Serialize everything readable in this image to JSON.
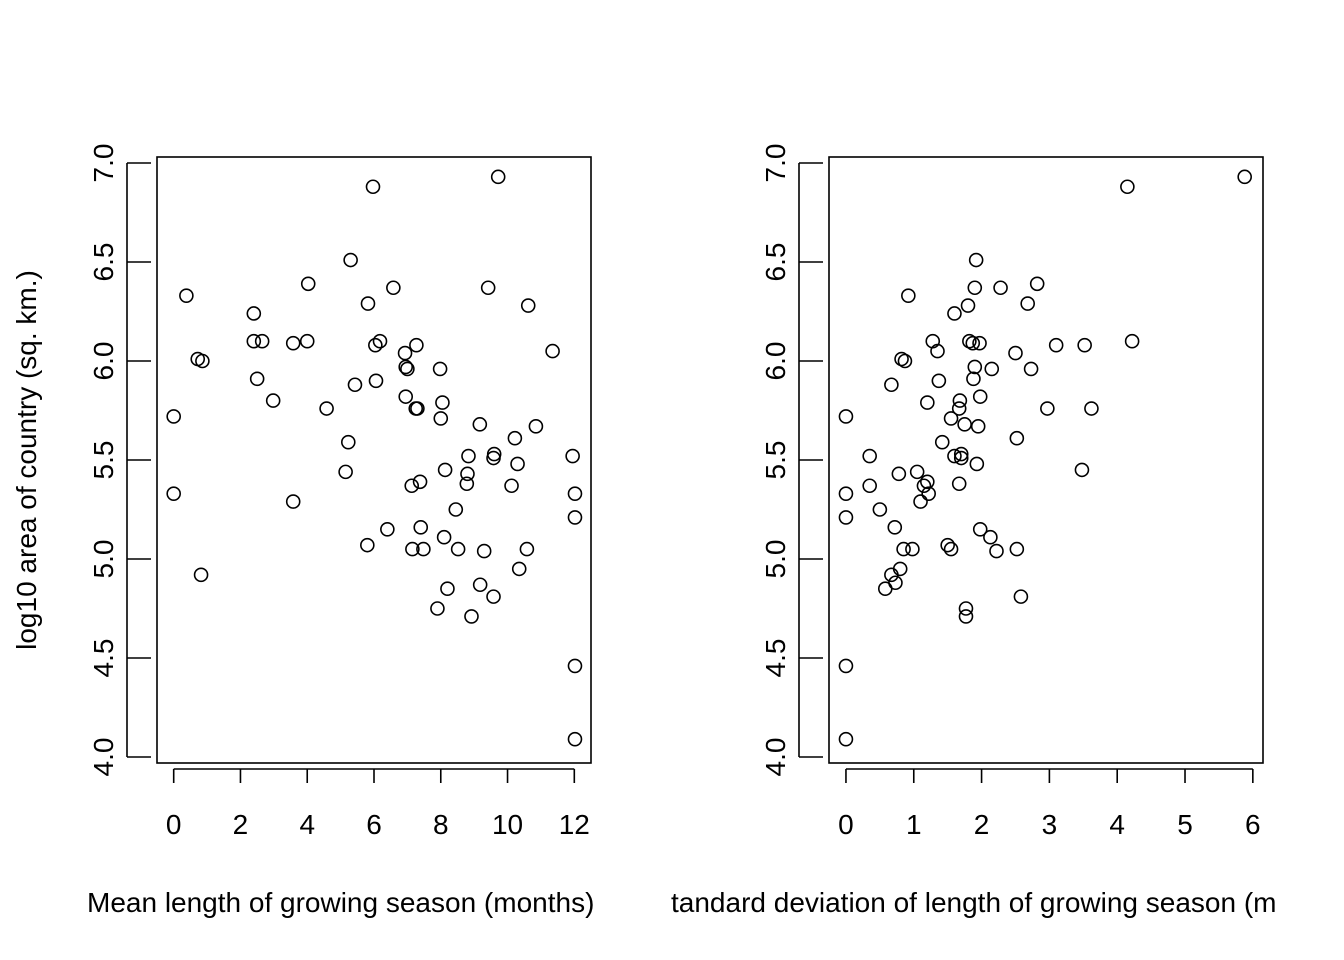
{
  "chart_data": [
    {
      "type": "scatter",
      "title": "",
      "xlabel": "Mean length of growing season (months)",
      "ylabel": "log10 area of country (sq. km.)",
      "xlim": [
        -0.5,
        12.5
      ],
      "ylim": [
        4.0,
        7.0
      ],
      "xticks": [
        "0",
        "2",
        "4",
        "6",
        "8",
        "10",
        "12"
      ],
      "yticks": [
        "4.0",
        "4.5",
        "5.0",
        "5.5",
        "6.0",
        "6.5",
        "7.0"
      ],
      "xtick_values": [
        0,
        2,
        4,
        6,
        8,
        10,
        12
      ],
      "ytick_values": [
        4.0,
        4.5,
        5.0,
        5.5,
        6.0,
        6.5,
        7.0
      ],
      "grid": false,
      "points": [
        [
          0.0,
          5.72
        ],
        [
          0.0,
          5.33
        ],
        [
          0.38,
          6.33
        ],
        [
          0.72,
          6.01
        ],
        [
          0.86,
          6.0
        ],
        [
          0.82,
          4.92
        ],
        [
          2.4,
          6.24
        ],
        [
          2.4,
          6.1
        ],
        [
          2.65,
          6.1
        ],
        [
          2.5,
          5.91
        ],
        [
          2.98,
          5.8
        ],
        [
          3.58,
          6.09
        ],
        [
          3.58,
          5.29
        ],
        [
          4.0,
          6.1
        ],
        [
          4.03,
          6.39
        ],
        [
          4.58,
          5.76
        ],
        [
          5.15,
          5.44
        ],
        [
          5.23,
          5.59
        ],
        [
          5.3,
          6.51
        ],
        [
          5.43,
          5.88
        ],
        [
          5.82,
          6.29
        ],
        [
          5.97,
          6.88
        ],
        [
          5.8,
          5.07
        ],
        [
          6.06,
          5.9
        ],
        [
          6.04,
          6.08
        ],
        [
          6.18,
          6.1
        ],
        [
          6.4,
          5.15
        ],
        [
          6.58,
          6.37
        ],
        [
          6.93,
          6.04
        ],
        [
          6.95,
          5.97
        ],
        [
          6.95,
          5.82
        ],
        [
          7.0,
          5.96
        ],
        [
          7.13,
          5.37
        ],
        [
          7.15,
          5.05
        ],
        [
          7.25,
          5.76
        ],
        [
          7.27,
          6.08
        ],
        [
          7.3,
          5.76
        ],
        [
          7.38,
          5.39
        ],
        [
          7.4,
          5.16
        ],
        [
          7.48,
          5.05
        ],
        [
          7.9,
          4.75
        ],
        [
          7.98,
          5.96
        ],
        [
          8.0,
          5.71
        ],
        [
          8.05,
          5.79
        ],
        [
          8.1,
          5.11
        ],
        [
          8.13,
          5.45
        ],
        [
          8.2,
          4.85
        ],
        [
          8.45,
          5.25
        ],
        [
          8.52,
          5.05
        ],
        [
          8.78,
          5.38
        ],
        [
          8.8,
          5.43
        ],
        [
          8.83,
          5.52
        ],
        [
          8.92,
          4.71
        ],
        [
          9.18,
          4.87
        ],
        [
          9.17,
          5.68
        ],
        [
          9.3,
          5.04
        ],
        [
          9.42,
          6.37
        ],
        [
          9.58,
          5.51
        ],
        [
          9.6,
          5.53
        ],
        [
          9.58,
          4.81
        ],
        [
          9.72,
          6.93
        ],
        [
          10.12,
          5.37
        ],
        [
          10.22,
          5.61
        ],
        [
          10.3,
          5.48
        ],
        [
          10.35,
          4.95
        ],
        [
          10.58,
          5.05
        ],
        [
          10.62,
          6.28
        ],
        [
          10.85,
          5.67
        ],
        [
          11.35,
          6.05
        ],
        [
          11.95,
          5.52
        ],
        [
          12.02,
          5.33
        ],
        [
          12.02,
          5.21
        ],
        [
          12.02,
          4.46
        ],
        [
          12.02,
          4.09
        ]
      ]
    },
    {
      "type": "scatter",
      "title": "",
      "xlabel": "Standard deviation of length of growing season (months)",
      "xlabel_visible": "tandard deviation of length of growing season (m",
      "ylabel": "",
      "xlim": [
        -0.25,
        6.15
      ],
      "ylim": [
        4.0,
        7.0
      ],
      "xticks": [
        "0",
        "1",
        "2",
        "3",
        "4",
        "5",
        "6"
      ],
      "yticks": [
        "4.0",
        "4.5",
        "5.0",
        "5.5",
        "6.0",
        "6.5",
        "7.0"
      ],
      "xtick_values": [
        0,
        1,
        2,
        3,
        4,
        5,
        6
      ],
      "ytick_values": [
        4.0,
        4.5,
        5.0,
        5.5,
        6.0,
        6.5,
        7.0
      ],
      "grid": false,
      "points": [
        [
          0.0,
          5.72
        ],
        [
          0.0,
          5.33
        ],
        [
          0.0,
          5.21
        ],
        [
          0.0,
          4.46
        ],
        [
          0.0,
          4.09
        ],
        [
          0.35,
          5.52
        ],
        [
          0.35,
          5.37
        ],
        [
          0.5,
          5.25
        ],
        [
          0.58,
          4.85
        ],
        [
          0.67,
          5.88
        ],
        [
          0.67,
          4.92
        ],
        [
          0.73,
          4.88
        ],
        [
          0.72,
          5.16
        ],
        [
          0.78,
          5.43
        ],
        [
          0.8,
          4.95
        ],
        [
          0.82,
          6.01
        ],
        [
          0.87,
          6.0
        ],
        [
          0.85,
          5.05
        ],
        [
          0.92,
          6.33
        ],
        [
          0.98,
          5.05
        ],
        [
          1.05,
          5.44
        ],
        [
          1.1,
          5.29
        ],
        [
          1.15,
          5.37
        ],
        [
          1.2,
          5.39
        ],
        [
          1.2,
          5.79
        ],
        [
          1.22,
          5.33
        ],
        [
          1.28,
          6.1
        ],
        [
          1.35,
          6.05
        ],
        [
          1.37,
          5.9
        ],
        [
          1.42,
          5.59
        ],
        [
          1.5,
          5.07
        ],
        [
          1.55,
          5.71
        ],
        [
          1.55,
          5.05
        ],
        [
          1.6,
          5.52
        ],
        [
          1.6,
          6.24
        ],
        [
          1.67,
          5.76
        ],
        [
          1.68,
          5.8
        ],
        [
          1.67,
          5.38
        ],
        [
          1.7,
          5.51
        ],
        [
          1.7,
          5.53
        ],
        [
          1.75,
          5.68
        ],
        [
          1.77,
          4.75
        ],
        [
          1.77,
          4.71
        ],
        [
          1.8,
          6.28
        ],
        [
          1.82,
          6.1
        ],
        [
          1.87,
          6.09
        ],
        [
          1.88,
          5.91
        ],
        [
          1.9,
          5.97
        ],
        [
          1.9,
          6.37
        ],
        [
          1.92,
          6.51
        ],
        [
          1.93,
          5.48
        ],
        [
          1.95,
          5.67
        ],
        [
          1.97,
          6.09
        ],
        [
          1.98,
          5.82
        ],
        [
          1.98,
          5.15
        ],
        [
          2.13,
          5.11
        ],
        [
          2.15,
          5.96
        ],
        [
          2.22,
          5.04
        ],
        [
          2.28,
          6.37
        ],
        [
          2.5,
          6.04
        ],
        [
          2.52,
          5.61
        ],
        [
          2.52,
          5.05
        ],
        [
          2.58,
          4.81
        ],
        [
          2.68,
          6.29
        ],
        [
          2.73,
          5.96
        ],
        [
          2.82,
          6.39
        ],
        [
          2.97,
          5.76
        ],
        [
          3.1,
          6.08
        ],
        [
          3.48,
          5.45
        ],
        [
          3.52,
          6.08
        ],
        [
          3.62,
          5.76
        ],
        [
          4.15,
          6.88
        ],
        [
          4.22,
          6.1
        ],
        [
          5.88,
          6.93
        ]
      ]
    }
  ]
}
